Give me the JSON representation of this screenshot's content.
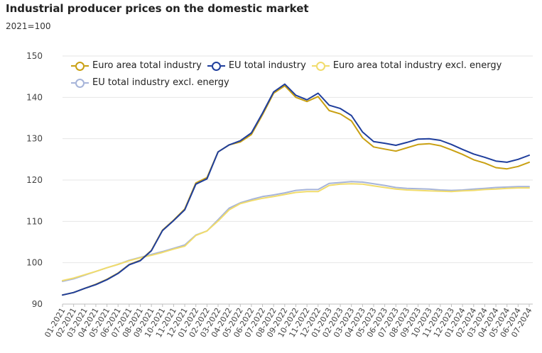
{
  "title": "Industrial producer prices on the domestic market",
  "subtitle": "2021=100",
  "chart_data": {
    "type": "line",
    "title": "Industrial producer prices on the domestic market",
    "ylabel": "2021=100",
    "xlabel": "",
    "ylim": [
      90,
      150
    ],
    "yticks": [
      90,
      100,
      110,
      120,
      130,
      140,
      150
    ],
    "grid": true,
    "legend_position": "top",
    "x": [
      "01-2021",
      "02-2021",
      "03-2021",
      "04-2021",
      "05-2021",
      "06-2021",
      "07-2021",
      "08-2021",
      "09-2021",
      "10-2021",
      "11-2021",
      "12-2021",
      "01-2022",
      "02-2022",
      "03-2022",
      "04-2022",
      "05-2022",
      "06-2022",
      "07-2022",
      "08-2022",
      "09-2022",
      "10-2022",
      "11-2022",
      "12-2022",
      "01-2023",
      "02-2023",
      "03-2023",
      "04-2023",
      "05-2023",
      "06-2023",
      "07-2023",
      "08-2023",
      "09-2023",
      "10-2023",
      "11-2023",
      "12-2023",
      "01-2024",
      "02-2024",
      "03-2024",
      "04-2024",
      "05-2024",
      "06-2024",
      "07-2024"
    ],
    "series": [
      {
        "name": "Euro area total industry",
        "color": "#c9a012",
        "values": [
          92.2,
          92.8,
          93.8,
          94.8,
          96.0,
          97.5,
          99.6,
          100.6,
          103.0,
          107.9,
          110.3,
          113.0,
          119.3,
          120.6,
          126.8,
          128.5,
          129.2,
          131.0,
          135.8,
          141.0,
          142.8,
          140.0,
          139.0,
          140.2,
          136.8,
          136.0,
          134.3,
          130.2,
          128.0,
          127.5,
          127.0,
          127.8,
          128.6,
          128.8,
          128.3,
          127.3,
          126.2,
          124.9,
          124.1,
          123.0,
          122.7,
          123.3,
          124.3
        ]
      },
      {
        "name": "EU total industry",
        "color": "#1f3e9c",
        "values": [
          92.2,
          92.8,
          93.8,
          94.7,
          95.9,
          97.4,
          99.5,
          100.5,
          102.9,
          107.8,
          110.2,
          112.8,
          119.0,
          120.3,
          126.8,
          128.5,
          129.5,
          131.4,
          136.2,
          141.3,
          143.2,
          140.5,
          139.4,
          141.0,
          138.1,
          137.3,
          135.6,
          131.6,
          129.3,
          128.9,
          128.4,
          129.1,
          129.9,
          130.0,
          129.6,
          128.6,
          127.4,
          126.3,
          125.5,
          124.6,
          124.3,
          125.0,
          126.0
        ]
      },
      {
        "name": "Euro area total industry excl. energy",
        "color": "#f1dc6b",
        "values": [
          95.7,
          96.3,
          97.1,
          97.9,
          98.8,
          99.6,
          100.5,
          101.2,
          101.8,
          102.5,
          103.3,
          104.0,
          106.6,
          107.7,
          110.1,
          112.8,
          114.3,
          115.0,
          115.6,
          116.0,
          116.5,
          117.0,
          117.2,
          117.2,
          118.7,
          119.0,
          119.1,
          119.0,
          118.6,
          118.2,
          117.8,
          117.6,
          117.5,
          117.4,
          117.3,
          117.2,
          117.4,
          117.5,
          117.7,
          117.8,
          118.0,
          118.1,
          118.1
        ]
      },
      {
        "name": "EU total industry excl. energy",
        "color": "#a6b4d9",
        "values": [
          95.5,
          96.1,
          97.0,
          97.9,
          98.8,
          99.6,
          100.6,
          101.3,
          102.0,
          102.7,
          103.5,
          104.3,
          106.7,
          107.7,
          110.4,
          113.2,
          114.5,
          115.3,
          116.0,
          116.4,
          116.9,
          117.5,
          117.7,
          117.7,
          119.2,
          119.4,
          119.6,
          119.5,
          119.1,
          118.7,
          118.2,
          118.0,
          117.9,
          117.8,
          117.6,
          117.5,
          117.6,
          117.8,
          118.0,
          118.2,
          118.3,
          118.4,
          118.4
        ]
      }
    ]
  }
}
